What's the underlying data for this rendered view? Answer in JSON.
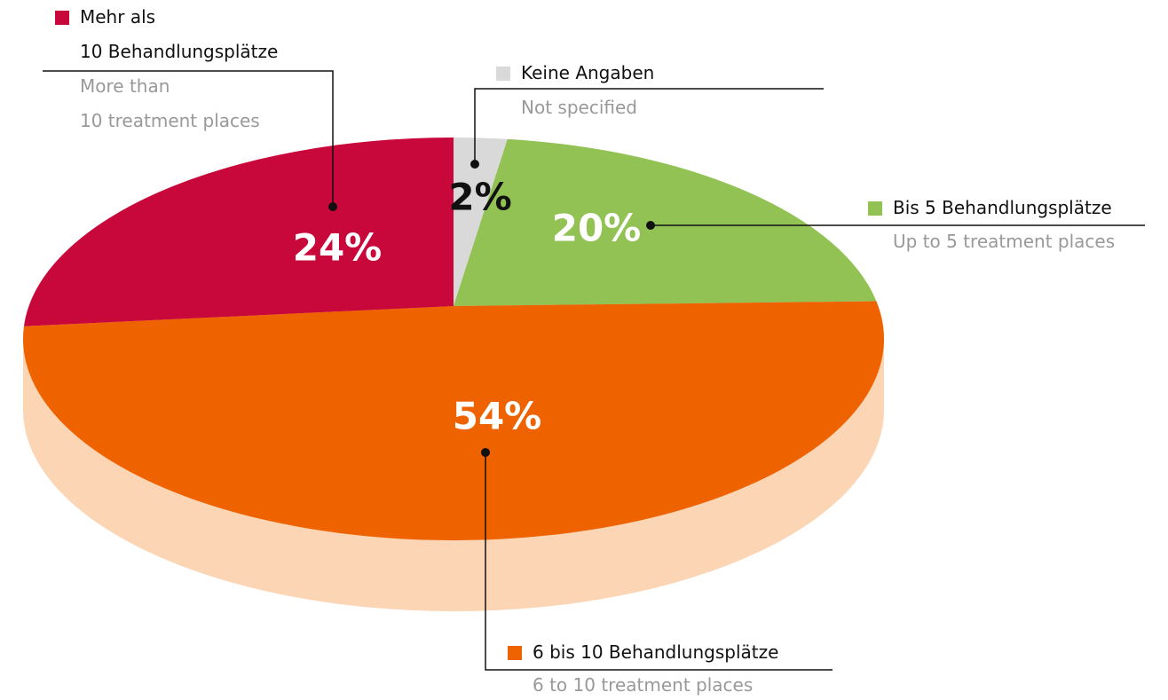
{
  "chart_data": {
    "type": "pie",
    "categories": [
      "Keine Angaben",
      "Bis 5 Behandlungsplätze",
      "6 bis 10 Behandlungsplätze",
      "Mehr als\n10 Behandlungsplätze"
    ],
    "secondary_labels": [
      "Not specified",
      "Up to 5 treatment places",
      "6 to 10 treatment places",
      "More than\n10 treatment places"
    ],
    "values": [
      2,
      20,
      54,
      24
    ],
    "value_labels": [
      "2%",
      "20%",
      "54%",
      "24%"
    ],
    "colors": [
      "#d9d9d9",
      "#92c154",
      "#ee6300",
      "#c8073a"
    ]
  }
}
